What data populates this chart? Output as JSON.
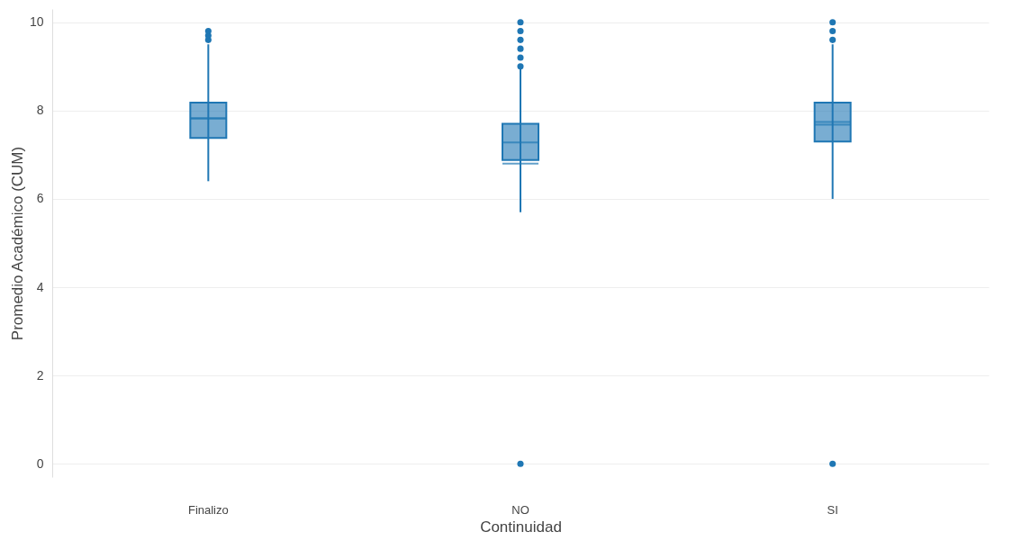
{
  "chart_data": {
    "type": "box",
    "xlabel": "Continuidad",
    "ylabel": "Promedio Académico (CUM)",
    "categories": [
      "Finalizo",
      "NO",
      "SI"
    ],
    "color": "#1f77b4",
    "boxes": [
      {
        "low": 6.4,
        "q1": 7.38,
        "median": 7.82,
        "q3": 8.18,
        "high": 9.5,
        "mean": 7.83,
        "outliers": [
          9.6,
          9.7,
          9.8
        ]
      },
      {
        "low": 5.7,
        "q1": 6.88,
        "median": 7.28,
        "q3": 7.7,
        "high": 8.95,
        "mean": 6.8,
        "outliers": [
          0,
          9.0,
          9.2,
          9.4,
          9.6,
          9.8,
          10
        ]
      },
      {
        "low": 6.0,
        "q1": 7.3,
        "median": 7.74,
        "q3": 8.18,
        "high": 9.5,
        "mean": 7.68,
        "outliers": [
          0,
          9.6,
          9.8,
          10
        ]
      }
    ],
    "ylim": [
      -0.3,
      10.3
    ],
    "yticks": [
      0,
      2,
      4,
      6,
      8,
      10
    ],
    "grid": "y"
  }
}
